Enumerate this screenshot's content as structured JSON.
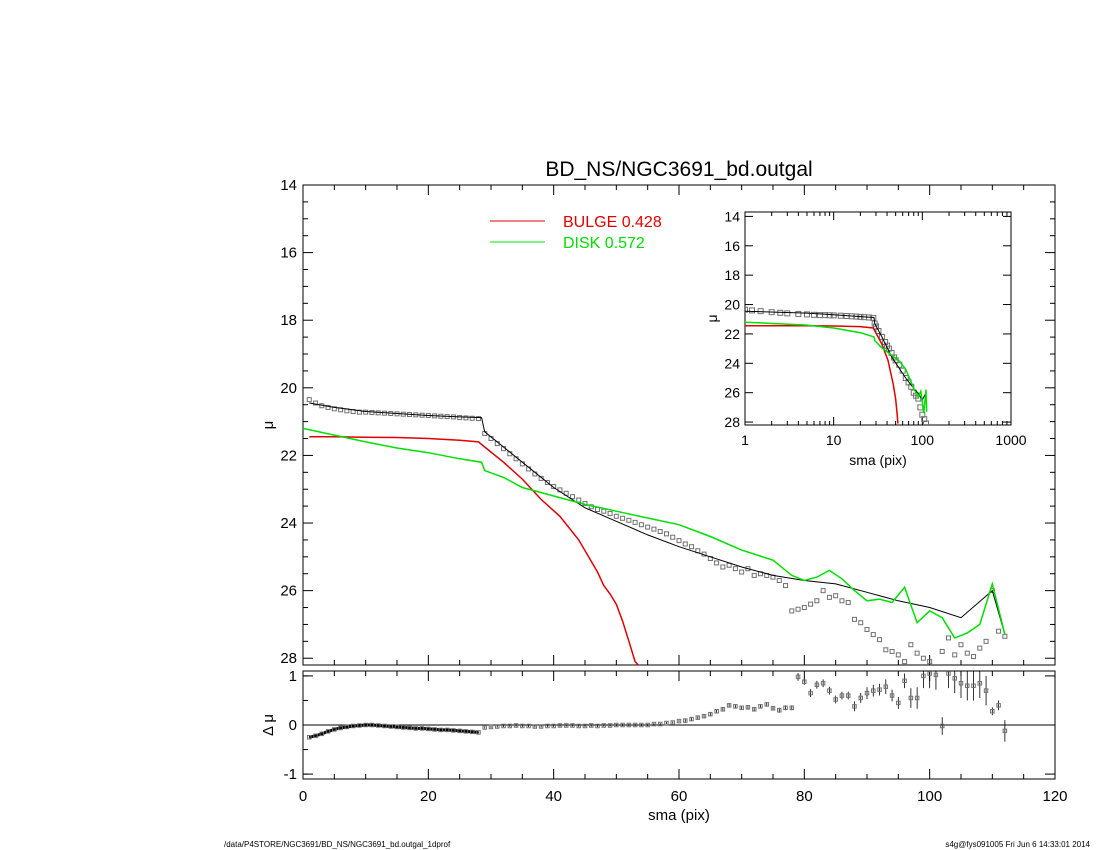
{
  "colors": {
    "bulge": "#e00000",
    "disk": "#00e000",
    "data": "#707070",
    "model": "#000000"
  },
  "footer": {
    "left": "/data/P4STORE/NGC3691/BD_NS/NGC3691_bd.outgal_1dprof",
    "right": "s4g@fys091005  Fri Jun  6 14:33:01 2014"
  },
  "chart_data": [
    {
      "id": "main",
      "type": "scatter",
      "title": "BD_NS/NGC3691_bd.outgal",
      "ylabel": "μ",
      "xlim": [
        0,
        120
      ],
      "ylim": [
        28.2,
        14
      ],
      "y_inverted": true,
      "y_ticks": [
        "14",
        "16",
        "18",
        "20",
        "22",
        "24",
        "26",
        "28"
      ],
      "legend": {
        "position": "top-center",
        "entries": [
          {
            "name": "BULGE",
            "value": "0.428",
            "color": "#e00000"
          },
          {
            "name": "DISK",
            "value": "0.572",
            "color": "#00e000"
          }
        ]
      },
      "series": [
        {
          "name": "data",
          "kind": "points",
          "x": [
            1,
            2,
            3,
            4,
            5,
            6,
            7,
            8,
            9,
            10,
            11,
            12,
            13,
            14,
            15,
            16,
            17,
            18,
            19,
            20,
            21,
            22,
            23,
            24,
            25,
            26,
            27,
            28,
            29,
            30,
            31,
            32,
            33,
            34,
            35,
            36,
            37,
            38,
            39,
            40,
            41,
            42,
            43,
            44,
            45,
            46,
            47,
            48,
            49,
            50,
            51,
            52,
            53,
            54,
            55,
            56,
            57,
            58,
            59,
            60,
            61,
            62,
            63,
            64,
            65,
            66,
            67,
            68,
            69,
            70,
            71,
            72,
            73,
            74,
            75,
            76,
            77,
            78,
            79,
            80,
            81,
            82,
            83,
            84,
            85,
            86,
            87,
            88,
            89,
            90,
            91,
            92,
            93,
            94,
            95,
            96,
            97,
            98,
            99,
            100,
            101,
            102,
            103,
            104,
            105,
            106,
            107,
            108,
            109,
            110,
            111,
            112
          ],
          "y": [
            20.35,
            20.45,
            20.53,
            20.58,
            20.62,
            20.65,
            20.68,
            20.7,
            20.72,
            20.72,
            20.73,
            20.74,
            20.75,
            20.76,
            20.77,
            20.78,
            20.79,
            20.8,
            20.81,
            20.82,
            20.83,
            20.84,
            20.85,
            20.86,
            20.88,
            20.89,
            20.9,
            20.91,
            21.35,
            21.5,
            21.65,
            21.8,
            21.95,
            22.1,
            22.25,
            22.4,
            22.55,
            22.68,
            22.8,
            22.92,
            23.02,
            23.12,
            23.22,
            23.32,
            23.42,
            23.52,
            23.6,
            23.65,
            23.72,
            23.8,
            23.86,
            23.92,
            23.98,
            24.05,
            24.12,
            24.18,
            24.25,
            24.32,
            24.42,
            24.52,
            24.62,
            24.7,
            24.82,
            24.92,
            25.05,
            25.18,
            25.3,
            25.25,
            25.35,
            25.45,
            25.35,
            25.55,
            25.5,
            25.55,
            25.6,
            25.7,
            25.85,
            26.6,
            26.55,
            26.5,
            26.4,
            26.3,
            26.0,
            26.2,
            26.15,
            26.3,
            26.35,
            26.85,
            26.95,
            27.15,
            27.3,
            27.45,
            27.75,
            27.8,
            27.9,
            28.1,
            27.6,
            27.85,
            28.0,
            28.1,
            28.3,
            27.8,
            27.4,
            27.9,
            27.6,
            27.85,
            27.95,
            27.7,
            27.5,
            26.0,
            27.2,
            27.35
          ]
        },
        {
          "name": "model",
          "kind": "line",
          "x": [
            1,
            5,
            10,
            15,
            20,
            25,
            28.5,
            29,
            32,
            35,
            40,
            45,
            50,
            55,
            60,
            65,
            70,
            75,
            80,
            85,
            90,
            95,
            100,
            105,
            110,
            112
          ],
          "y": [
            20.45,
            20.58,
            20.7,
            20.76,
            20.82,
            20.86,
            20.88,
            21.3,
            21.75,
            22.2,
            22.95,
            23.55,
            23.95,
            24.35,
            24.7,
            25.0,
            25.3,
            25.55,
            25.7,
            25.8,
            26.05,
            26.3,
            26.5,
            26.8,
            26.0,
            27.3
          ]
        },
        {
          "name": "bulge",
          "kind": "line",
          "x": [
            1,
            5,
            10,
            15,
            20,
            25,
            28,
            29,
            32,
            35,
            38,
            41,
            44,
            47,
            48,
            49,
            50,
            51,
            52,
            53,
            55,
            58,
            60,
            64
          ],
          "y": [
            21.45,
            21.45,
            21.46,
            21.47,
            21.5,
            21.55,
            21.6,
            21.75,
            22.2,
            22.7,
            23.3,
            23.8,
            24.5,
            25.45,
            25.85,
            26.1,
            26.4,
            26.9,
            27.5,
            28.1,
            28.5,
            28.8,
            29.1,
            29.7
          ]
        },
        {
          "name": "disk",
          "kind": "line",
          "x": [
            0,
            5,
            10,
            15,
            20,
            25,
            28.5,
            29,
            32,
            35,
            40,
            45,
            50,
            55,
            60,
            65,
            70,
            75,
            78,
            80,
            82,
            84,
            86,
            88,
            90,
            92,
            94,
            96,
            98,
            100,
            102,
            104,
            106,
            108,
            110,
            112
          ],
          "y": [
            21.2,
            21.4,
            21.6,
            21.78,
            21.92,
            22.1,
            22.2,
            22.45,
            22.65,
            22.95,
            23.2,
            23.45,
            23.65,
            23.85,
            24.05,
            24.4,
            24.8,
            25.1,
            25.55,
            25.7,
            25.6,
            25.4,
            25.65,
            26.0,
            26.3,
            26.25,
            26.35,
            25.9,
            26.95,
            26.6,
            26.8,
            27.4,
            27.25,
            27.0,
            25.8,
            27.3
          ]
        }
      ]
    },
    {
      "id": "residual",
      "type": "scatter",
      "xlabel": "sma (pix)",
      "ylabel": "Δ μ",
      "xlim": [
        0,
        120
      ],
      "ylim": [
        -1.1,
        1.1
      ],
      "x_ticks": [
        "0",
        "20",
        "40",
        "60",
        "80",
        "100",
        "120"
      ],
      "y_ticks": [
        "1",
        "0",
        "-1"
      ],
      "series": [
        {
          "name": "residual",
          "kind": "points",
          "x": [
            1,
            2,
            3,
            4,
            5,
            6,
            7,
            8,
            9,
            10,
            11,
            12,
            13,
            14,
            15,
            16,
            17,
            18,
            19,
            20,
            21,
            22,
            23,
            24,
            25,
            26,
            27,
            28,
            29,
            30,
            31,
            32,
            33,
            34,
            35,
            36,
            37,
            38,
            39,
            40,
            41,
            42,
            43,
            44,
            45,
            46,
            47,
            48,
            49,
            50,
            51,
            52,
            53,
            54,
            55,
            56,
            57,
            58,
            59,
            60,
            61,
            62,
            63,
            64,
            65,
            66,
            67,
            68,
            69,
            70,
            71,
            72,
            73,
            74,
            75,
            76,
            77,
            78,
            79,
            80,
            81,
            82,
            83,
            84,
            85,
            86,
            87,
            88,
            89,
            90,
            91,
            92,
            93,
            94,
            95,
            96,
            97,
            98,
            99,
            100,
            101,
            102,
            103,
            104,
            105,
            106,
            107,
            108,
            109,
            110,
            111,
            112
          ],
          "y": [
            -0.25,
            -0.22,
            -0.18,
            -0.13,
            -0.09,
            -0.06,
            -0.04,
            -0.02,
            -0.01,
            0.0,
            0.0,
            -0.01,
            -0.02,
            -0.03,
            -0.04,
            -0.05,
            -0.06,
            -0.07,
            -0.07,
            -0.08,
            -0.09,
            -0.1,
            -0.1,
            -0.11,
            -0.12,
            -0.13,
            -0.14,
            -0.15,
            -0.05,
            -0.04,
            -0.03,
            -0.02,
            -0.02,
            -0.01,
            -0.02,
            -0.02,
            -0.03,
            -0.03,
            -0.02,
            -0.02,
            -0.01,
            -0.01,
            -0.01,
            -0.02,
            -0.02,
            -0.01,
            -0.02,
            -0.01,
            -0.01,
            0.0,
            0.0,
            0.0,
            0.0,
            0.0,
            0.0,
            0.02,
            0.02,
            0.04,
            0.05,
            0.08,
            0.09,
            0.12,
            0.15,
            0.18,
            0.22,
            0.28,
            0.32,
            0.4,
            0.38,
            0.35,
            0.36,
            0.32,
            0.38,
            0.42,
            0.34,
            0.3,
            0.35,
            0.35,
            0.98,
            0.88,
            0.65,
            0.82,
            0.85,
            0.7,
            0.52,
            0.6,
            0.6,
            0.38,
            0.55,
            0.65,
            0.7,
            0.72,
            0.78,
            0.6,
            0.45,
            0.9,
            0.55,
            0.55,
            1.0,
            1.05,
            1.02,
            -0.02,
            1.05,
            0.95,
            0.85,
            0.8,
            0.8,
            0.85,
            0.7,
            0.28,
            0.4,
            -0.12
          ],
          "err": [
            0.01,
            0.01,
            0.01,
            0.01,
            0.01,
            0.01,
            0.01,
            0.01,
            0.01,
            0.01,
            0.01,
            0.01,
            0.01,
            0.01,
            0.01,
            0.01,
            0.01,
            0.01,
            0.01,
            0.01,
            0.01,
            0.01,
            0.01,
            0.01,
            0.01,
            0.01,
            0.01,
            0.01,
            0.02,
            0.02,
            0.02,
            0.02,
            0.02,
            0.02,
            0.02,
            0.02,
            0.02,
            0.02,
            0.02,
            0.02,
            0.02,
            0.02,
            0.02,
            0.02,
            0.02,
            0.02,
            0.02,
            0.02,
            0.02,
            0.02,
            0.02,
            0.02,
            0.02,
            0.02,
            0.02,
            0.02,
            0.02,
            0.02,
            0.02,
            0.02,
            0.03,
            0.03,
            0.03,
            0.03,
            0.03,
            0.03,
            0.03,
            0.03,
            0.03,
            0.03,
            0.04,
            0.04,
            0.04,
            0.04,
            0.04,
            0.05,
            0.05,
            0.05,
            0.08,
            0.06,
            0.08,
            0.08,
            0.08,
            0.08,
            0.08,
            0.08,
            0.08,
            0.1,
            0.1,
            0.12,
            0.12,
            0.12,
            0.15,
            0.12,
            0.12,
            0.15,
            0.2,
            0.22,
            0.25,
            0.3,
            0.3,
            0.18,
            0.3,
            0.3,
            0.3,
            0.3,
            0.3,
            0.3,
            0.3,
            0.08,
            0.1,
            0.22
          ]
        }
      ]
    },
    {
      "id": "inset",
      "type": "scatter",
      "xlabel": "sma (pix)",
      "ylabel": "μ",
      "x_log": true,
      "xlim": [
        1,
        1000
      ],
      "ylim": [
        28.2,
        13.7
      ],
      "y_inverted": true,
      "x_ticks": [
        "1",
        "10",
        "100",
        "1000"
      ],
      "y_ticks": [
        "14",
        "16",
        "18",
        "20",
        "22",
        "24",
        "26",
        "28"
      ],
      "series": [
        {
          "name": "data",
          "kind": "points",
          "x": [
            1,
            1.2,
            1.5,
            2,
            2.5,
            3,
            4,
            5,
            6,
            7,
            8,
            9,
            10,
            12,
            14,
            16,
            18,
            20,
            22,
            25,
            28,
            29,
            30,
            32,
            35,
            38,
            40,
            42,
            45,
            48,
            50,
            55,
            60,
            65,
            70,
            75,
            80,
            85,
            90,
            95,
            100,
            105,
            110
          ],
          "y": [
            20.35,
            20.4,
            20.45,
            20.52,
            20.56,
            20.6,
            20.64,
            20.67,
            20.7,
            20.72,
            20.72,
            20.73,
            20.74,
            20.76,
            20.78,
            20.8,
            20.82,
            20.84,
            20.86,
            20.88,
            20.91,
            21.3,
            21.5,
            21.8,
            22.2,
            22.55,
            22.8,
            23.0,
            23.3,
            23.6,
            23.8,
            24.1,
            24.5,
            25.0,
            25.3,
            25.6,
            26.0,
            26.2,
            26.4,
            27.0,
            27.5,
            27.8,
            28.1
          ]
        },
        {
          "name": "model",
          "kind": "line",
          "x": [
            1,
            5,
            10,
            20,
            28.5,
            29,
            35,
            45,
            55,
            65,
            80,
            90,
            100,
            110
          ],
          "y": [
            20.45,
            20.58,
            20.7,
            20.82,
            20.88,
            21.3,
            22.2,
            23.55,
            24.35,
            25.0,
            25.7,
            26.05,
            26.5,
            26.0
          ]
        },
        {
          "name": "bulge",
          "kind": "line",
          "x": [
            1,
            5,
            10,
            20,
            28,
            35,
            41,
            47,
            50,
            52,
            53
          ],
          "y": [
            21.45,
            21.45,
            21.46,
            21.5,
            21.6,
            22.7,
            23.8,
            25.45,
            26.4,
            27.5,
            28.1
          ]
        },
        {
          "name": "disk",
          "kind": "line",
          "x": [
            1,
            5,
            10,
            20,
            28.5,
            29,
            35,
            45,
            55,
            65,
            80,
            90,
            96,
            100,
            104,
            110,
            112
          ],
          "y": [
            21.2,
            21.4,
            21.6,
            21.92,
            22.2,
            22.45,
            22.95,
            23.45,
            23.85,
            24.4,
            25.7,
            26.3,
            25.9,
            26.6,
            27.4,
            25.8,
            27.3
          ]
        }
      ]
    }
  ]
}
